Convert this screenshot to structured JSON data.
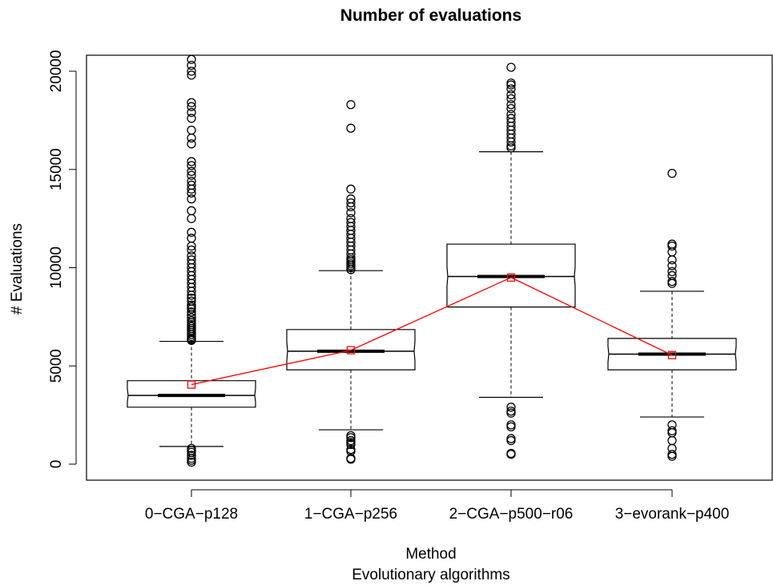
{
  "chart_data": {
    "type": "boxplot",
    "title": "Number of evaluations",
    "xlabel": "Method",
    "xlabel_sub": "Evolutionary algorithms",
    "ylabel": "# Evaluations",
    "ylim": [
      -800,
      20800
    ],
    "yticks": [
      0,
      5000,
      10000,
      15000,
      20000
    ],
    "notched": true,
    "colors": {
      "box": "#000000",
      "mean": "#ff0000"
    },
    "categories": [
      "0−CGA−p128",
      "1−CGA−p256",
      "2−CGA−p500−r06",
      "3−evorank−p400"
    ],
    "boxes": [
      {
        "q1": 2900,
        "median": 3500,
        "q3": 4250,
        "whisker_low": 900,
        "whisker_high": 6250,
        "mean": 4050,
        "outliers": [
          100,
          200,
          300,
          450,
          600,
          700,
          800,
          6300,
          6350,
          6400,
          6500,
          6600,
          6700,
          6800,
          6900,
          7000,
          7100,
          7200,
          7300,
          7450,
          7600,
          7750,
          7900,
          8000,
          8100,
          8300,
          8450,
          8600,
          8800,
          9000,
          9200,
          9400,
          9600,
          9800,
          10000,
          10200,
          10400,
          10600,
          10900,
          11100,
          11500,
          11800,
          12500,
          12900,
          13500,
          13800,
          14000,
          14200,
          14400,
          14700,
          14900,
          15200,
          15400,
          16300,
          16600,
          17000,
          17600,
          17900,
          18200,
          18400,
          19800,
          20000,
          20300,
          20600
        ]
      },
      {
        "q1": 4800,
        "median": 5750,
        "q3": 6850,
        "whisker_low": 1750,
        "whisker_high": 9850,
        "mean": 5800,
        "outliers": [
          250,
          300,
          650,
          750,
          1000,
          1100,
          1200,
          1350,
          1450,
          9900,
          10000,
          10100,
          10200,
          10300,
          10400,
          10500,
          10700,
          10900,
          11100,
          11300,
          11500,
          11700,
          11900,
          12100,
          12300,
          12500,
          12800,
          13100,
          13300,
          13500,
          14000,
          17100,
          18300
        ]
      },
      {
        "q1": 8000,
        "median": 9550,
        "q3": 11200,
        "whisker_low": 3400,
        "whisker_high": 15900,
        "mean": 9500,
        "outliers": [
          500,
          550,
          1200,
          1300,
          1900,
          2000,
          2600,
          2700,
          2900,
          16100,
          16200,
          16400,
          16600,
          16800,
          17000,
          17200,
          17400,
          17600,
          17800,
          18100,
          18300,
          18600,
          18800,
          19100,
          19300,
          19400,
          20200
        ]
      },
      {
        "q1": 4800,
        "median": 5600,
        "q3": 6400,
        "whisker_low": 2400,
        "whisker_high": 8800,
        "mean": 5550,
        "outliers": [
          400,
          500,
          800,
          1200,
          1600,
          1700,
          2000,
          9200,
          9300,
          9600,
          9800,
          10100,
          10400,
          10800,
          11100,
          11200,
          14800
        ]
      }
    ]
  }
}
